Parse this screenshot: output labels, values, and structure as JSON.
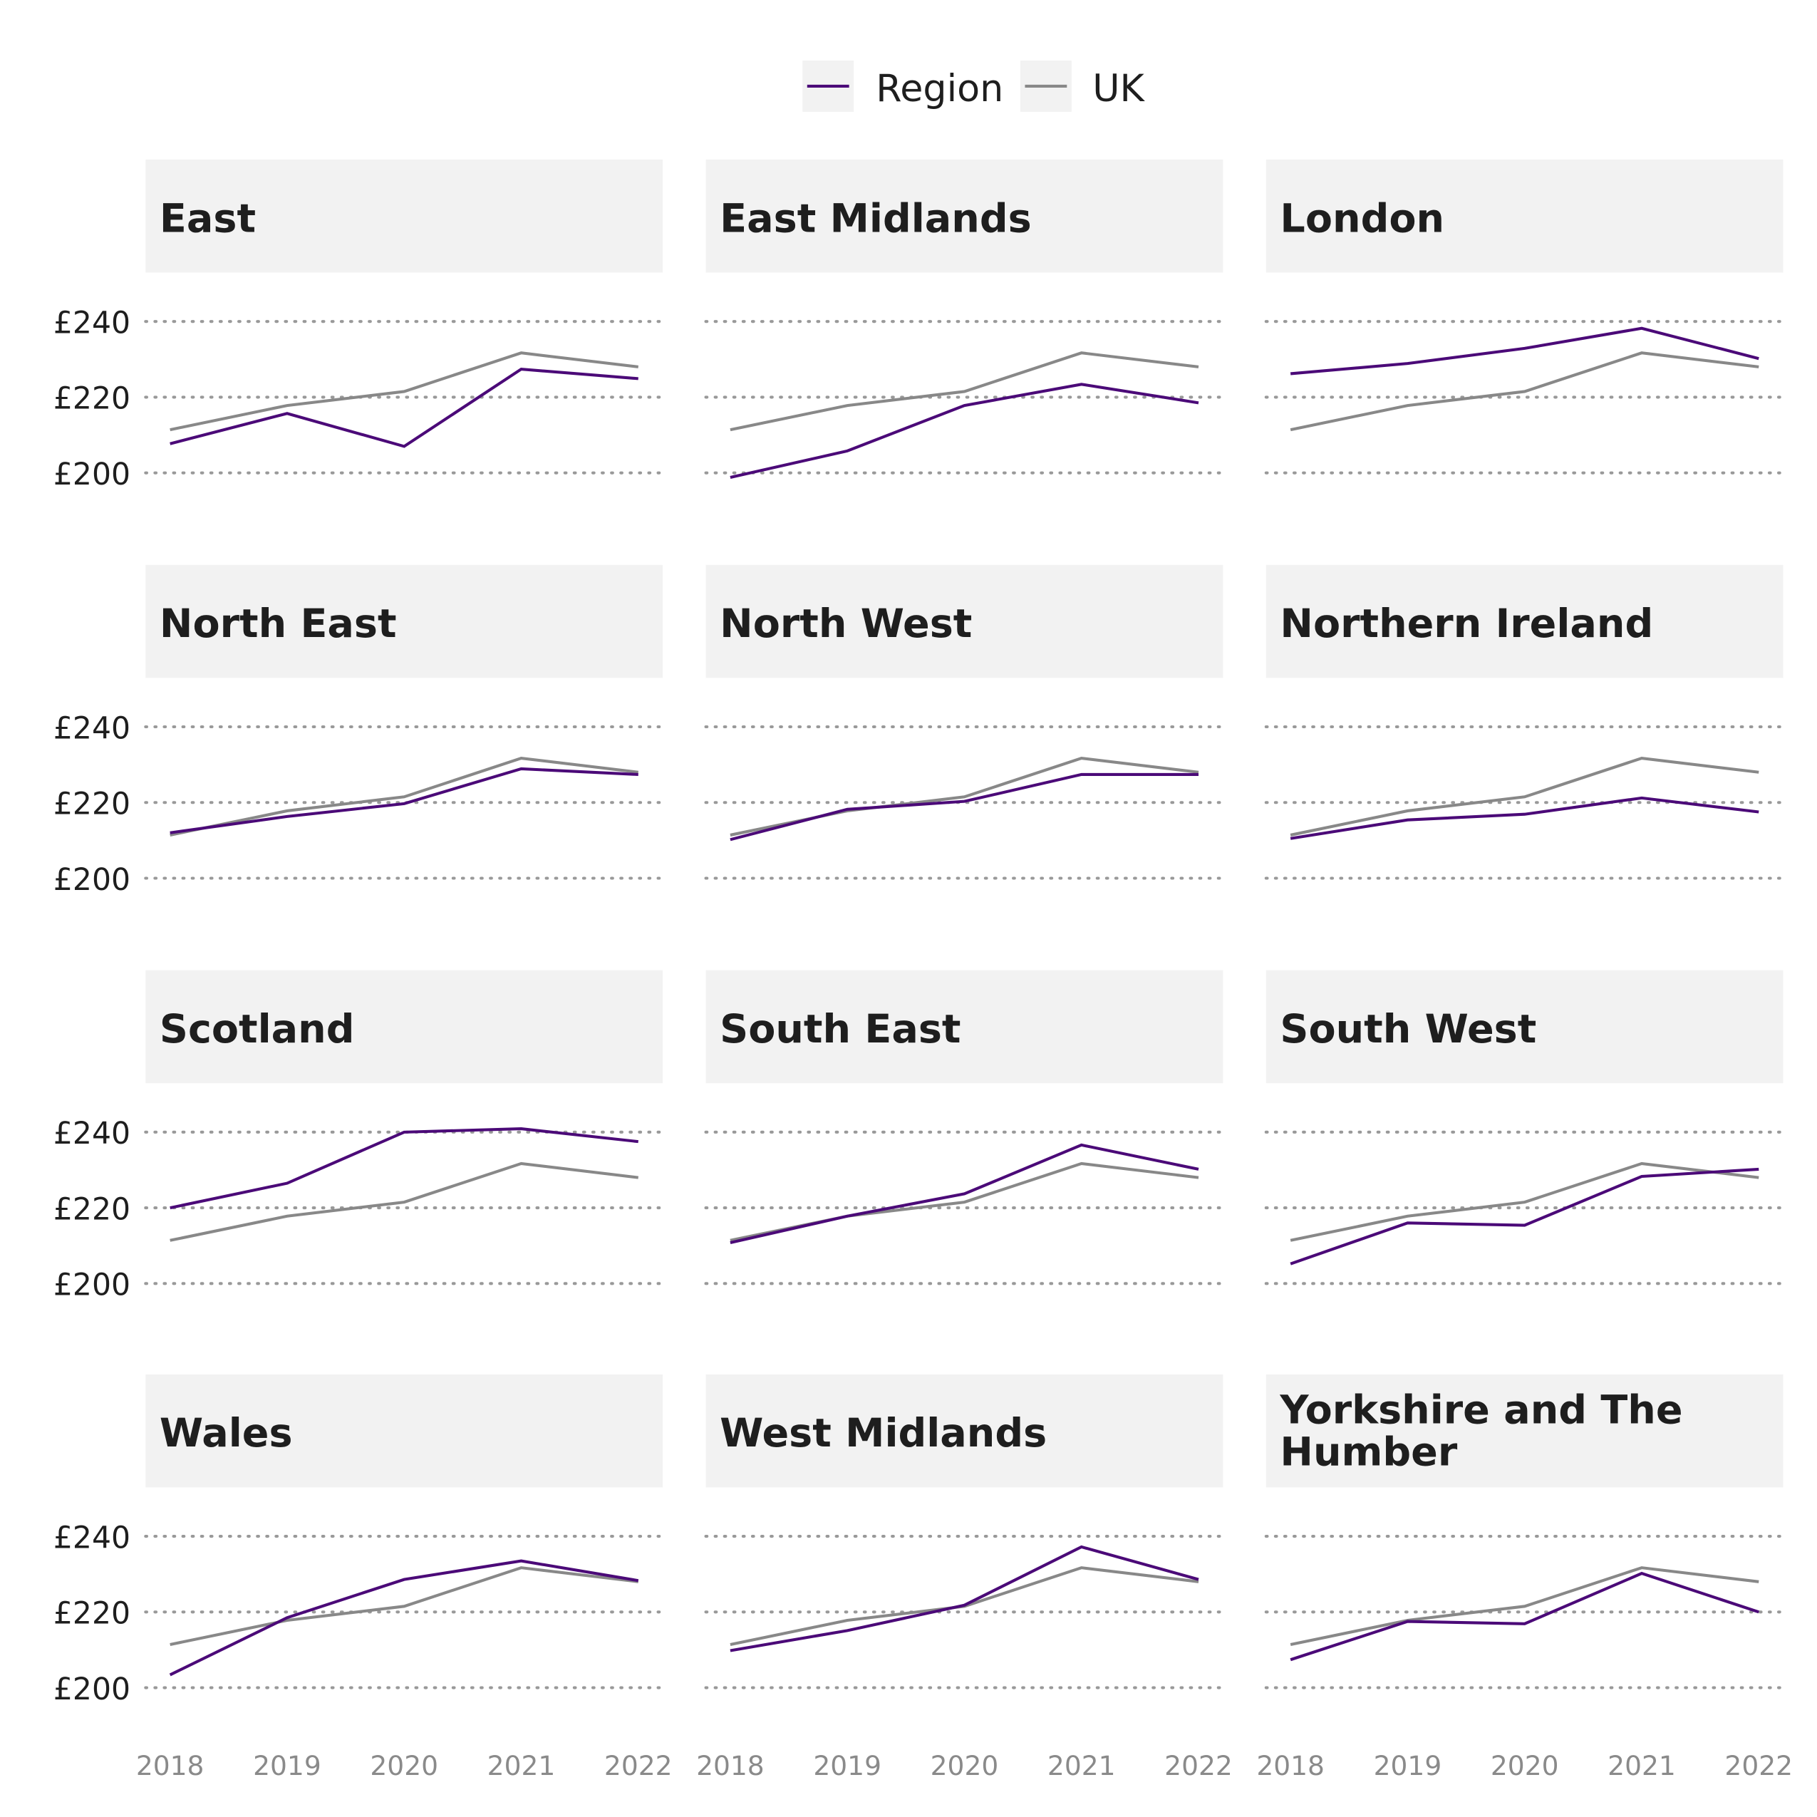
{
  "chart_data": {
    "type": "line",
    "facet": "small-multiples 4x3",
    "x": [
      2018,
      2019,
      2020,
      2021,
      2022
    ],
    "ylim": [
      190,
      250
    ],
    "yticks": [
      200,
      220,
      240
    ],
    "ytick_labels": [
      "£200",
      "£220",
      "£240"
    ],
    "grid": "horizontal dotted",
    "legend": {
      "placement": "top",
      "entries": [
        "Region",
        "UK"
      ]
    },
    "colors": {
      "Region": "#4b0a78",
      "UK": "#888888",
      "strip_bg": "#f2f2f2",
      "grid": "#999999"
    },
    "uk": [
      211.4,
      217.8,
      221.5,
      231.7,
      228.0
    ],
    "panels": [
      {
        "title": "East",
        "region": [
          207.7,
          215.7,
          207.0,
          227.4,
          224.9
        ]
      },
      {
        "title": "East Midlands",
        "region": [
          198.8,
          205.8,
          217.8,
          223.4,
          218.5
        ]
      },
      {
        "title": "London",
        "region": [
          226.2,
          228.9,
          232.9,
          238.2,
          230.2
        ]
      },
      {
        "title": "North East",
        "region": [
          212.0,
          216.3,
          219.7,
          228.9,
          227.4
        ]
      },
      {
        "title": "North West",
        "region": [
          210.2,
          218.2,
          220.3,
          227.4,
          227.4
        ]
      },
      {
        "title": "Northern Ireland",
        "region": [
          210.5,
          215.4,
          216.9,
          221.2,
          217.5
        ]
      },
      {
        "title": "Scotland",
        "region": [
          220.0,
          226.5,
          240.0,
          240.9,
          237.5
        ]
      },
      {
        "title": "South East",
        "region": [
          210.8,
          217.8,
          223.7,
          236.6,
          230.2
        ]
      },
      {
        "title": "South West",
        "region": [
          205.2,
          216.0,
          215.4,
          228.3,
          230.2
        ]
      },
      {
        "title": "Wales",
        "region": [
          203.4,
          218.5,
          228.6,
          233.5,
          228.3
        ]
      },
      {
        "title": "West Midlands",
        "region": [
          209.8,
          215.1,
          221.8,
          237.2,
          228.6
        ]
      },
      {
        "title": "Yorkshire and The Humber",
        "title_lines": [
          "Yorkshire and The",
          "Humber"
        ],
        "region": [
          207.4,
          217.5,
          216.9,
          230.2,
          220.0
        ]
      }
    ]
  }
}
